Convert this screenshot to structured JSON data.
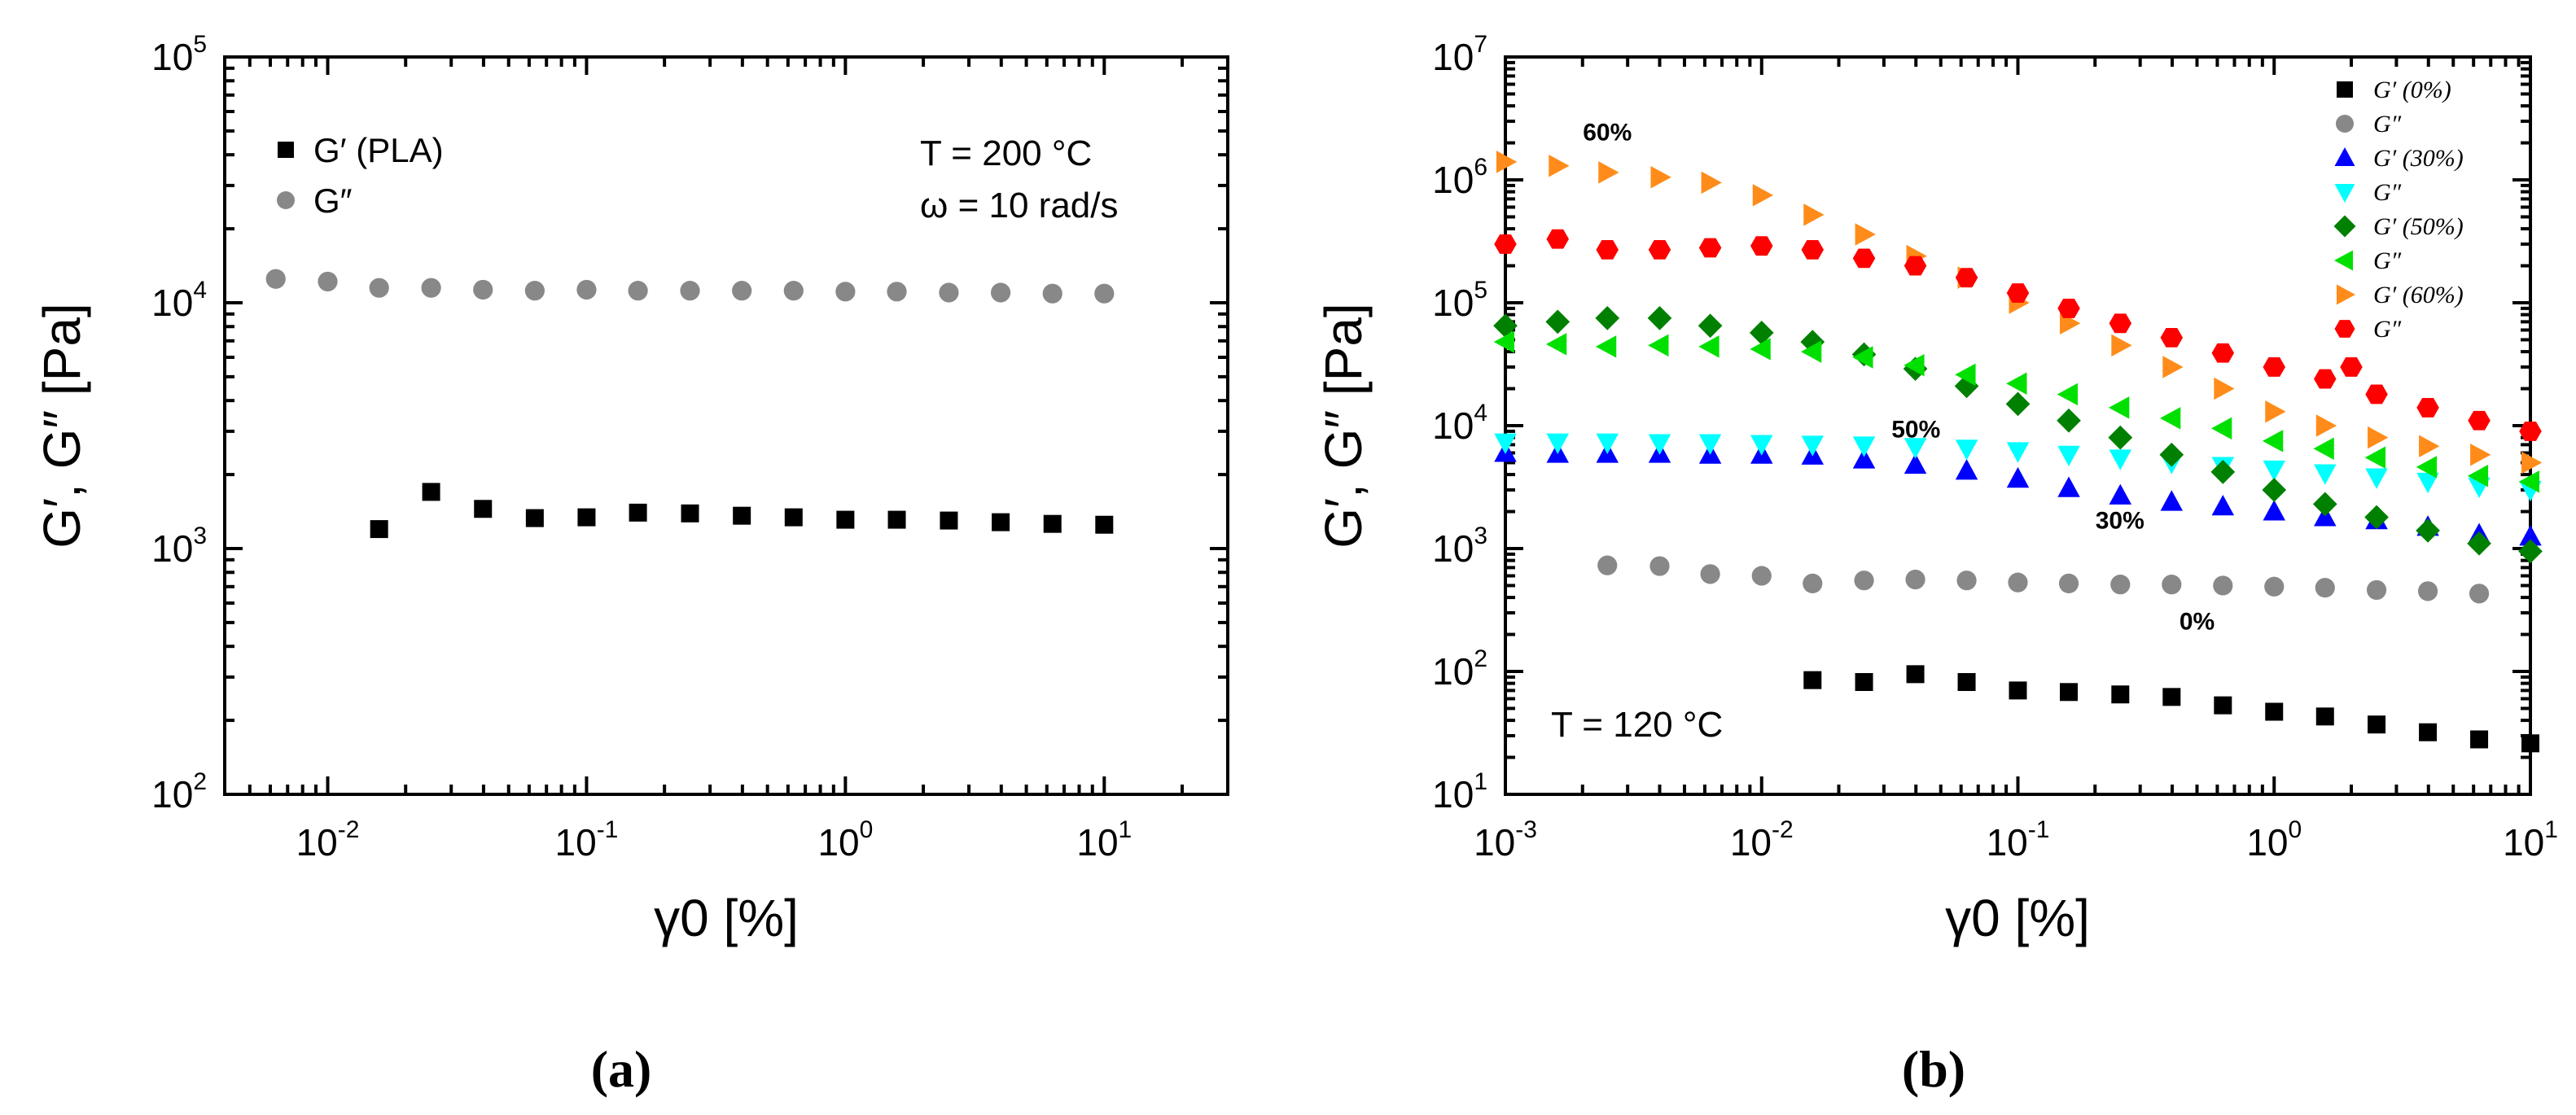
{
  "chart_data": [
    {
      "type": "scatter",
      "panel_label": "(a)",
      "xlabel": "γ0 [%]",
      "ylabel": "G′, G″ [Pa]",
      "x_scale": "log",
      "y_scale": "log",
      "xlim": [
        0.004,
        30
      ],
      "ylim": [
        100,
        100000
      ],
      "x_ticks": [
        {
          "value": 0.01,
          "base": "10",
          "exp": "-2"
        },
        {
          "value": 0.1,
          "base": "10",
          "exp": "-1"
        },
        {
          "value": 1,
          "base": "10",
          "exp": "0"
        },
        {
          "value": 10,
          "base": "10",
          "exp": "1"
        }
      ],
      "y_ticks": [
        {
          "value": 100,
          "base": "10",
          "exp": "2"
        },
        {
          "value": 1000,
          "base": "10",
          "exp": "3"
        },
        {
          "value": 10000,
          "base": "10",
          "exp": "4"
        },
        {
          "value": 100000,
          "base": "10",
          "exp": "5"
        }
      ],
      "legend_position": "top-left",
      "annotation_position": "top-right",
      "annotations": [
        "T = 200 °C",
        "ω = 10 rad/s"
      ],
      "series": [
        {
          "name": "G′ (PLA)",
          "marker": "square",
          "color": "#000000",
          "x": [
            0.0158,
            0.0251,
            0.0398,
            0.0631,
            0.1,
            0.158,
            0.251,
            0.398,
            0.631,
            1.0,
            1.58,
            2.51,
            3.98,
            6.31,
            10.0
          ],
          "y": [
            1200,
            1700,
            1450,
            1330,
            1340,
            1400,
            1390,
            1360,
            1340,
            1310,
            1310,
            1300,
            1280,
            1260,
            1250
          ]
        },
        {
          "name": "G″",
          "marker": "circle",
          "color": "#888888",
          "x": [
            0.0063,
            0.01,
            0.0158,
            0.0251,
            0.0398,
            0.0631,
            0.1,
            0.158,
            0.251,
            0.398,
            0.631,
            1.0,
            1.58,
            2.51,
            3.98,
            6.31,
            10.0
          ],
          "y": [
            12500,
            12200,
            11500,
            11500,
            11300,
            11200,
            11300,
            11200,
            11200,
            11200,
            11200,
            11100,
            11100,
            11000,
            11000,
            10900,
            10900
          ]
        }
      ]
    },
    {
      "type": "scatter",
      "panel_label": "(b)",
      "xlabel": "γ0 [%]",
      "ylabel": "G′, G″ [Pa]",
      "x_scale": "log",
      "y_scale": "log",
      "xlim": [
        0.001,
        10
      ],
      "ylim": [
        10,
        10000000
      ],
      "x_ticks": [
        {
          "value": 0.001,
          "base": "10",
          "exp": "-3"
        },
        {
          "value": 0.01,
          "base": "10",
          "exp": "-2"
        },
        {
          "value": 0.1,
          "base": "10",
          "exp": "-1"
        },
        {
          "value": 1,
          "base": "10",
          "exp": "0"
        },
        {
          "value": 10,
          "base": "10",
          "exp": "1"
        }
      ],
      "y_ticks": [
        {
          "value": 10,
          "base": "10",
          "exp": "1"
        },
        {
          "value": 100,
          "base": "10",
          "exp": "2"
        },
        {
          "value": 1000,
          "base": "10",
          "exp": "3"
        },
        {
          "value": 10000,
          "base": "10",
          "exp": "4"
        },
        {
          "value": 100000,
          "base": "10",
          "exp": "5"
        },
        {
          "value": 1000000,
          "base": "10",
          "exp": "6"
        },
        {
          "value": 10000000,
          "base": "10",
          "exp": "7"
        }
      ],
      "legend_position": "top-right",
      "annotation": "T = 120 °C",
      "series_labels": [
        {
          "text": "60%",
          "color": "#ff0000",
          "x": 0.0025,
          "y": 2100000
        },
        {
          "text": "50%",
          "color": "#008000",
          "x": 0.04,
          "y": 8000
        },
        {
          "text": "30%",
          "color": "#0000ff",
          "x": 0.25,
          "y": 1450
        },
        {
          "text": "0%",
          "color": "#000000",
          "x": 0.5,
          "y": 220
        }
      ],
      "series": [
        {
          "name": "G′ (0%)",
          "marker": "square",
          "color": "#000000",
          "x": [
            0.0158,
            0.0251,
            0.0398,
            0.0631,
            0.1,
            0.158,
            0.251,
            0.398,
            0.631,
            1.0,
            1.58,
            2.51,
            3.98,
            6.31,
            10.0
          ],
          "y": [
            85,
            82,
            95,
            82,
            70,
            68,
            65,
            62,
            53,
            47,
            43,
            37,
            32,
            28,
            26
          ]
        },
        {
          "name": "G″",
          "marker": "circle",
          "color": "#888888",
          "x": [
            0.0025,
            0.004,
            0.0063,
            0.01,
            0.0158,
            0.0251,
            0.0398,
            0.0631,
            0.1,
            0.158,
            0.251,
            0.398,
            0.631,
            1.0,
            1.58,
            2.51,
            3.98,
            6.31
          ],
          "y": [
            730,
            720,
            620,
            600,
            520,
            550,
            560,
            550,
            530,
            520,
            510,
            510,
            500,
            490,
            480,
            460,
            450,
            430
          ]
        },
        {
          "name": "G′ (30%)",
          "marker": "triangle-up",
          "color": "#0000ff",
          "x": [
            0.001,
            0.0016,
            0.0025,
            0.004,
            0.0063,
            0.01,
            0.0158,
            0.0251,
            0.0398,
            0.0631,
            0.1,
            0.158,
            0.251,
            0.398,
            0.631,
            1.0,
            1.58,
            2.51,
            3.98,
            6.31,
            10.0
          ],
          "y": [
            6000,
            5900,
            5900,
            5900,
            5800,
            5800,
            5700,
            5300,
            4800,
            4300,
            3700,
            3100,
            2700,
            2400,
            2200,
            2000,
            1800,
            1700,
            1500,
            1300,
            1250
          ]
        },
        {
          "name": "G″",
          "marker": "triangle-down",
          "color": "#00ffff",
          "x": [
            0.001,
            0.0016,
            0.0025,
            0.004,
            0.0063,
            0.01,
            0.0158,
            0.0251,
            0.0398,
            0.0631,
            0.1,
            0.158,
            0.251,
            0.398,
            0.631,
            1.0,
            1.58,
            2.51,
            3.98,
            6.31,
            10.0
          ],
          "y": [
            7300,
            7300,
            7300,
            7200,
            7200,
            7100,
            7000,
            6900,
            6700,
            6500,
            6200,
            5800,
            5400,
            5000,
            4700,
            4400,
            4100,
            3800,
            3500,
            3200,
            3000
          ]
        },
        {
          "name": "G′ (50%)",
          "marker": "diamond",
          "color": "#008000",
          "x": [
            0.001,
            0.0016,
            0.0025,
            0.004,
            0.0063,
            0.01,
            0.0158,
            0.0251,
            0.0398,
            0.0631,
            0.1,
            0.158,
            0.251,
            0.398,
            0.631,
            1.0,
            1.58,
            2.51,
            3.98,
            6.31,
            10.0
          ],
          "y": [
            65000,
            70000,
            75000,
            75000,
            65000,
            57000,
            48000,
            38000,
            29000,
            21000,
            15000,
            11000,
            8000,
            5800,
            4200,
            3000,
            2300,
            1800,
            1400,
            1100,
            950
          ]
        },
        {
          "name": "G″",
          "marker": "triangle-left",
          "color": "#00e000",
          "x": [
            0.001,
            0.0016,
            0.0025,
            0.004,
            0.0063,
            0.01,
            0.0158,
            0.0251,
            0.0398,
            0.0631,
            0.1,
            0.158,
            0.251,
            0.398,
            0.631,
            1.0,
            1.58,
            2.51,
            3.98,
            6.31,
            10.0
          ],
          "y": [
            48000,
            46000,
            44000,
            45000,
            44000,
            42000,
            40000,
            36000,
            31000,
            26000,
            22000,
            18000,
            14000,
            11500,
            9500,
            7500,
            6500,
            5500,
            4600,
            3900,
            3500
          ]
        },
        {
          "name": "G′ (60%)",
          "marker": "triangle-right",
          "color": "#ff8c1a",
          "x": [
            0.001,
            0.0016,
            0.0025,
            0.004,
            0.0063,
            0.01,
            0.0158,
            0.0251,
            0.0398,
            0.0631,
            0.1,
            0.158,
            0.251,
            0.398,
            0.631,
            1.0,
            1.58,
            2.51,
            3.98,
            6.31,
            10.0
          ],
          "y": [
            1400000,
            1300000,
            1150000,
            1050000,
            950000,
            750000,
            520000,
            360000,
            240000,
            160000,
            100000,
            68000,
            45000,
            30000,
            20000,
            13000,
            10000,
            8000,
            6800,
            5800,
            5000
          ]
        },
        {
          "name": "G″",
          "marker": "hexagon",
          "color": "#ff0000",
          "x": [
            0.001,
            0.0016,
            0.0025,
            0.004,
            0.0063,
            0.01,
            0.0158,
            0.0251,
            0.0398,
            0.0631,
            0.1,
            0.158,
            0.251,
            0.398,
            0.631,
            1.0,
            1.58,
            2.0,
            2.51,
            3.98,
            6.31,
            10.0
          ],
          "y": [
            300000,
            330000,
            270000,
            270000,
            280000,
            290000,
            270000,
            230000,
            200000,
            160000,
            120000,
            90000,
            68000,
            52000,
            39000,
            30000,
            24000,
            30000,
            18000,
            14000,
            11000,
            9000
          ]
        }
      ]
    }
  ]
}
